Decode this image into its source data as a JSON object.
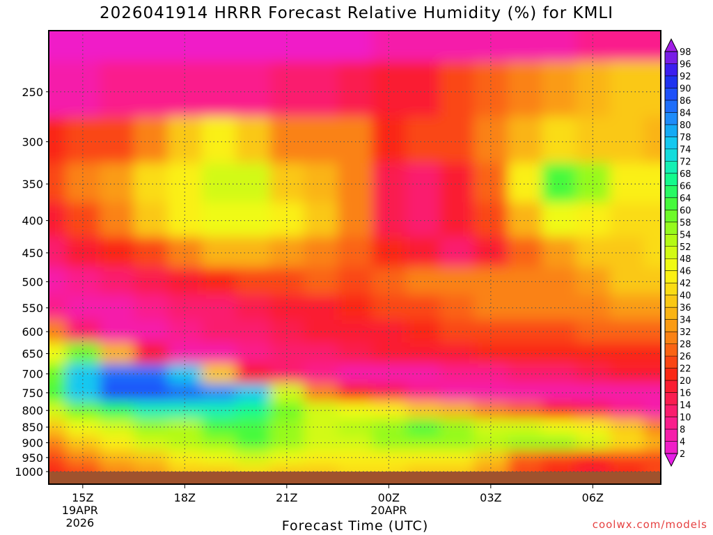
{
  "chart_data": {
    "type": "heatmap",
    "title": "2026041914 HRRR Forecast Relative Humidity (%) for KMLI",
    "xlabel": "Forecast Time (UTC)",
    "ylabel": "",
    "credit": "coolwx.com/models",
    "x_ticks": [
      {
        "label": "15Z",
        "sub": [
          "19APR",
          "2026"
        ]
      },
      {
        "label": "18Z",
        "sub": []
      },
      {
        "label": "21Z",
        "sub": []
      },
      {
        "label": "00Z",
        "sub": [
          "20APR"
        ]
      },
      {
        "label": "03Z",
        "sub": []
      },
      {
        "label": "06Z",
        "sub": []
      }
    ],
    "x_hours": [
      15,
      18,
      21,
      24,
      27,
      30
    ],
    "xlim": [
      14,
      32
    ],
    "y_levels": [
      "250",
      "300",
      "350",
      "400",
      "450",
      "500",
      "550",
      "600",
      "650",
      "700",
      "750",
      "800",
      "850",
      "900",
      "950",
      "1000"
    ],
    "y_scale": "log-pressure",
    "ylim": [
      200,
      1000
    ],
    "grid": true,
    "colorbar": {
      "levels": [
        "2",
        "4",
        "8",
        "10",
        "14",
        "16",
        "20",
        "22",
        "26",
        "28",
        "32",
        "34",
        "36",
        "40",
        "42",
        "46",
        "48",
        "52",
        "54",
        "58",
        "60",
        "64",
        "66",
        "68",
        "72",
        "74",
        "78",
        "80",
        "84",
        "86",
        "90",
        "92",
        "96",
        "98"
      ],
      "colors": [
        "#e61ee6",
        "#f01ec8",
        "#f51eaa",
        "#fa1e8c",
        "#fa1e6e",
        "#fa1e50",
        "#fa1e32",
        "#fa2814",
        "#fa4614",
        "#fa6414",
        "#fa8214",
        "#fa9b14",
        "#fab414",
        "#fac814",
        "#fadc14",
        "#faf014",
        "#f0fa14",
        "#d2fa14",
        "#b4fa14",
        "#96fa1e",
        "#6efa28",
        "#46fa3c",
        "#28fa64",
        "#14fa8c",
        "#14f0b4",
        "#14dcdc",
        "#14c8f0",
        "#14aaf5",
        "#1e8cfa",
        "#1e6efa",
        "#1e50fa",
        "#1e32f0",
        "#3c1ef0",
        "#781ee6",
        "#a01ee6"
      ]
    },
    "rh_grid": {
      "hours": [
        14,
        15,
        16,
        17,
        18,
        19,
        20,
        21,
        22,
        23,
        24,
        25,
        26,
        27,
        28,
        29,
        30,
        31,
        32
      ],
      "pressures": [
        200,
        250,
        300,
        350,
        400,
        450,
        500,
        550,
        600,
        650,
        700,
        750,
        800,
        850,
        900,
        950,
        1000
      ],
      "values": [
        [
          4,
          3,
          3,
          4,
          4,
          4,
          4,
          4,
          4,
          4,
          5,
          5,
          6,
          7,
          8,
          8,
          9,
          9,
          9
        ],
        [
          8,
          8,
          9,
          10,
          10,
          10,
          10,
          12,
          14,
          16,
          18,
          20,
          24,
          28,
          32,
          34,
          36,
          38,
          40
        ],
        [
          22,
          24,
          26,
          30,
          38,
          44,
          40,
          30,
          32,
          30,
          22,
          24,
          26,
          30,
          36,
          42,
          40,
          38,
          36
        ],
        [
          26,
          30,
          34,
          42,
          46,
          52,
          50,
          40,
          36,
          30,
          16,
          14,
          20,
          28,
          44,
          62,
          58,
          46,
          44
        ],
        [
          20,
          24,
          30,
          38,
          44,
          48,
          48,
          46,
          40,
          30,
          16,
          12,
          18,
          24,
          36,
          48,
          46,
          42,
          42
        ],
        [
          14,
          18,
          22,
          26,
          32,
          36,
          36,
          34,
          32,
          28,
          22,
          18,
          14,
          20,
          28,
          34,
          38,
          40,
          42
        ],
        [
          8,
          10,
          14,
          16,
          18,
          22,
          24,
          26,
          28,
          26,
          28,
          30,
          30,
          30,
          32,
          32,
          34,
          38,
          40
        ],
        [
          10,
          8,
          8,
          10,
          12,
          14,
          16,
          18,
          20,
          22,
          24,
          26,
          28,
          30,
          30,
          30,
          32,
          34,
          34
        ],
        [
          32,
          14,
          8,
          8,
          10,
          12,
          14,
          16,
          18,
          20,
          20,
          22,
          24,
          24,
          26,
          26,
          28,
          28,
          28
        ],
        [
          48,
          60,
          36,
          18,
          8,
          8,
          10,
          12,
          14,
          16,
          18,
          20,
          20,
          22,
          22,
          22,
          22,
          22,
          22
        ],
        [
          60,
          76,
          86,
          86,
          76,
          40,
          20,
          14,
          10,
          8,
          8,
          8,
          10,
          10,
          12,
          14,
          16,
          18,
          20
        ],
        [
          62,
          78,
          88,
          88,
          86,
          82,
          78,
          50,
          30,
          22,
          16,
          10,
          8,
          8,
          8,
          8,
          8,
          8,
          8
        ],
        [
          50,
          60,
          66,
          70,
          72,
          70,
          68,
          60,
          52,
          48,
          44,
          40,
          36,
          30,
          28,
          22,
          16,
          10,
          8
        ],
        [
          40,
          48,
          52,
          56,
          54,
          62,
          64,
          56,
          52,
          54,
          58,
          62,
          58,
          52,
          50,
          48,
          46,
          38,
          30
        ],
        [
          30,
          38,
          46,
          52,
          54,
          58,
          62,
          56,
          50,
          52,
          56,
          58,
          56,
          54,
          58,
          56,
          50,
          42,
          36
        ],
        [
          24,
          30,
          36,
          40,
          44,
          48,
          52,
          48,
          44,
          44,
          46,
          46,
          44,
          40,
          28,
          24,
          22,
          24,
          26
        ],
        [
          22,
          26,
          30,
          34,
          38,
          40,
          42,
          40,
          40,
          42,
          42,
          40,
          38,
          34,
          26,
          22,
          20,
          22,
          24
        ]
      ]
    }
  },
  "colors": {
    "ground": "#a0522d",
    "grid": "#555555",
    "credit": "#e64040"
  }
}
